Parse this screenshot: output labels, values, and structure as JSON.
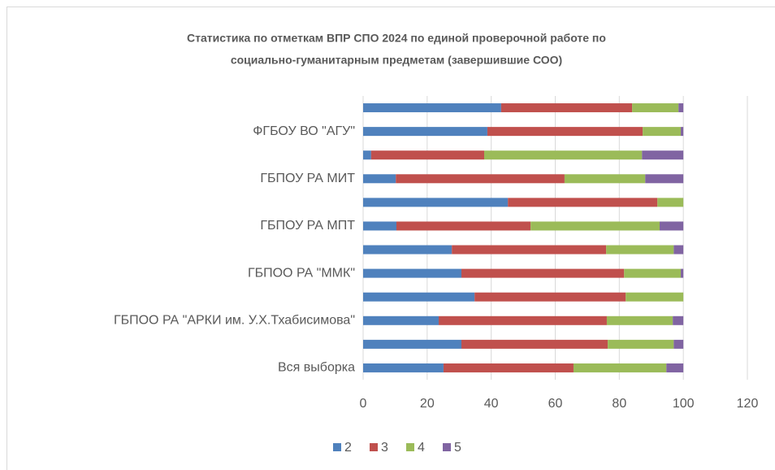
{
  "chart_data": {
    "type": "stacked-bar-horizontal",
    "title": [
      "Статистика по отметкам ВПР СПО 2024 по единой проверочной работе по",
      "социально-гуманитарным предметам  (завершившие СОО)"
    ],
    "categories": [
      null,
      "ФГБОУ ВО \"АГУ\"",
      null,
      "ГБПОУ РА МИТ",
      null,
      "ГБПОУ РА МПТ",
      null,
      "ГБПОО РА \"ММК\"",
      null,
      "ГБПОО РА \"АРКИ им. У.Х.Тхабисимова\"",
      null,
      "Вся выборка"
    ],
    "series": [
      {
        "name": "2",
        "color": "#4f81bd",
        "values": [
          43.1,
          38.8,
          2.5,
          10.2,
          45.2,
          10.4,
          27.7,
          30.7,
          34.8,
          23.6,
          30.7,
          25.1
        ]
      },
      {
        "name": "3",
        "color": "#c0504d",
        "values": [
          40.9,
          48.5,
          35.3,
          52.7,
          46.7,
          41.9,
          48.2,
          50.8,
          47.2,
          52.5,
          45.7,
          40.6
        ]
      },
      {
        "name": "4",
        "color": "#9bbb59",
        "values": [
          14.5,
          11.9,
          49.3,
          25.2,
          8.1,
          40.3,
          21.1,
          17.7,
          18.0,
          20.6,
          20.6,
          29.0
        ]
      },
      {
        "name": "5",
        "color": "#8064a2",
        "values": [
          1.5,
          0.8,
          12.9,
          11.9,
          0,
          7.4,
          3.0,
          0.8,
          0,
          3.3,
          3.0,
          5.3
        ]
      }
    ],
    "xlim": [
      0,
      120
    ],
    "xticks": [
      0,
      20,
      40,
      60,
      80,
      100,
      120
    ],
    "grid": true,
    "legend": "bottom"
  }
}
